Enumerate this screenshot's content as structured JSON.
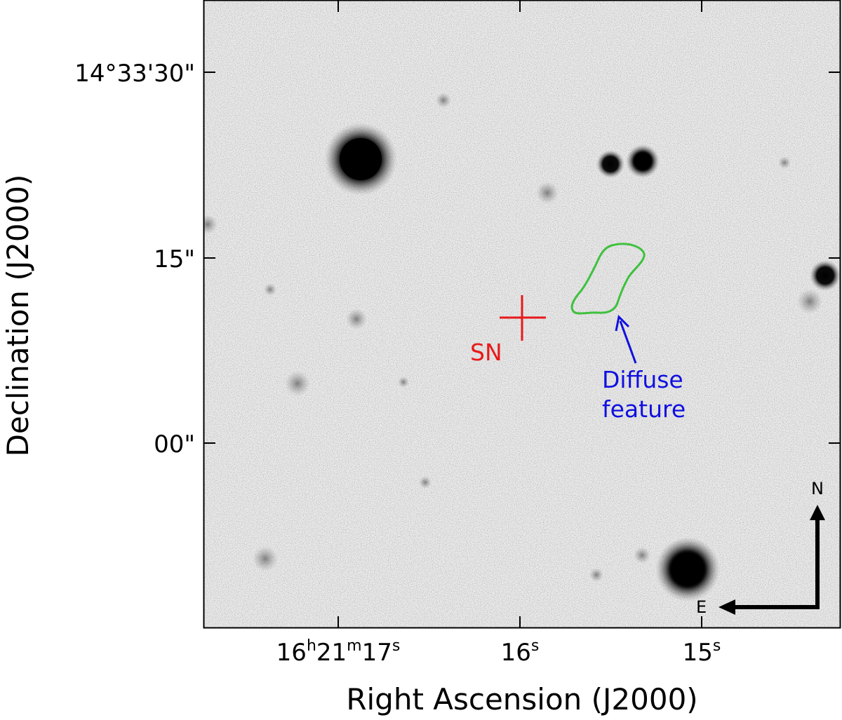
{
  "axes": {
    "x_title": "Right Ascension (J2000)",
    "y_title": "Declination (J2000)",
    "x_ticks": [
      {
        "main": "16",
        "sup1": "h",
        "mid": "21",
        "sup2": "m",
        "end": "17",
        "sup3": "s"
      },
      {
        "main": "16",
        "sup1": "s"
      },
      {
        "main": "15",
        "sup1": "s"
      }
    ],
    "y_ticks": [
      "14°33'30\"",
      "15\"",
      "00\""
    ]
  },
  "annotations": {
    "sn_label": "SN",
    "sn_color": "#e8191b",
    "diffuse_line1": "Diffuse",
    "diffuse_line2": "feature",
    "diffuse_color": "#1010e0",
    "contour_color": "#3ec13e"
  },
  "compass": {
    "north": "N",
    "east": "E"
  },
  "image": {
    "background": "#efefef",
    "sources": [
      {
        "id": "bright-star-upper-left",
        "kind": "bright-star"
      },
      {
        "id": "double-star-left",
        "kind": "star"
      },
      {
        "id": "double-star-right",
        "kind": "star"
      },
      {
        "id": "star-right-edge",
        "kind": "star"
      },
      {
        "id": "bright-star-lower-right",
        "kind": "bright-star"
      }
    ]
  }
}
